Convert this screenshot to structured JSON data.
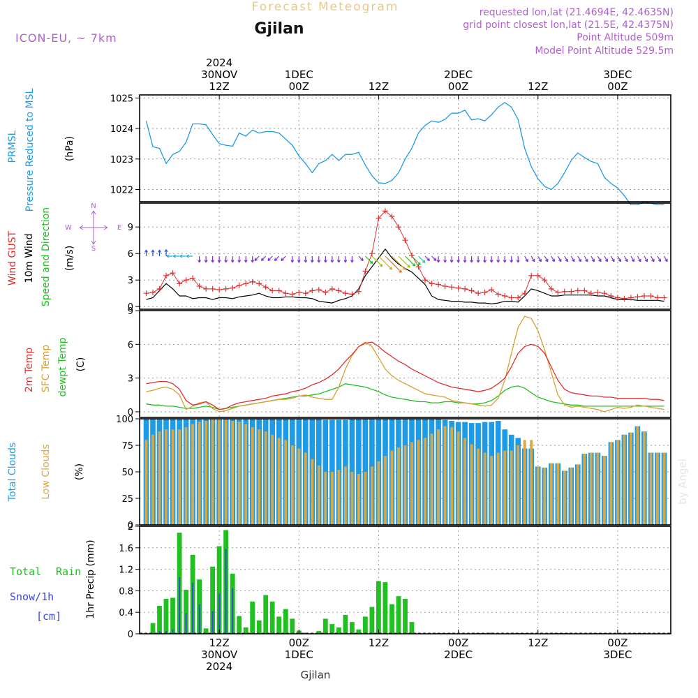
{
  "header": {
    "app_title": "Forecast Meteogram",
    "location": "Gjilan",
    "model": "ICON-EU, ~ 7km",
    "requested": "requested lon,lat (21.4694E, 42.4635N)",
    "grid_point": "grid point closest lon,lat (21.5E, 42.4375N)",
    "point_altitude": "Point Altitude 509m",
    "model_altitude": "Model Point Altitude 529.5m",
    "footer_location": "Gjilan",
    "watermark": "by Angel"
  },
  "colors": {
    "prmsl": "#1e9be6",
    "gust": "#e03030",
    "wind10": "#000000",
    "wind_dir": "#20c020",
    "t2m": "#e03030",
    "sfc": "#d8a030",
    "dewpt": "#20c020",
    "total_clouds": "#1e9be6",
    "low_clouds": "#d8a848",
    "rain": "#20c020",
    "snow": "#3848e0",
    "header_purple": "#b060d0",
    "title_gold": "#e8c890"
  },
  "time_axis": {
    "top_labels": [
      {
        "t": 18,
        "lines": [
          "2024",
          "30NOV",
          "12Z"
        ]
      },
      {
        "t": 30,
        "lines": [
          "1DEC",
          "00Z"
        ]
      },
      {
        "t": 42,
        "lines": [
          "12Z"
        ]
      },
      {
        "t": 54,
        "lines": [
          "2DEC",
          "00Z"
        ]
      },
      {
        "t": 66,
        "lines": [
          "12Z"
        ]
      },
      {
        "t": 78,
        "lines": [
          "3DEC",
          "00Z"
        ]
      }
    ],
    "bottom_labels": [
      {
        "t": 18,
        "lines": [
          "12Z",
          "30NOV",
          "2024"
        ]
      },
      {
        "t": 30,
        "lines": [
          "00Z",
          "1DEC"
        ]
      },
      {
        "t": 42,
        "lines": [
          "12Z"
        ]
      },
      {
        "t": 54,
        "lines": [
          "00Z",
          "2DEC"
        ]
      },
      {
        "t": 66,
        "lines": [
          "12Z"
        ]
      },
      {
        "t": 78,
        "lines": [
          "00Z",
          "3DEC"
        ]
      }
    ]
  },
  "chart_data": [
    {
      "type": "line",
      "name": "pressure",
      "labels": [
        "PRMSL",
        "Pressure Reduced to MSL",
        "(hPa)"
      ],
      "ylim": [
        1021.6,
        1025.1
      ],
      "yticks": [
        1022,
        1023,
        1024,
        1025
      ],
      "x": [
        7,
        8,
        9,
        10,
        11,
        12,
        13,
        14,
        15,
        16,
        17,
        18,
        19,
        20,
        21,
        22,
        23,
        24,
        25,
        26,
        27,
        28,
        29,
        30,
        31,
        32,
        33,
        34,
        35,
        36,
        37,
        38,
        39,
        40,
        41,
        42,
        43,
        44,
        45,
        46,
        47,
        48,
        49,
        50,
        51,
        52,
        53,
        54,
        55,
        56,
        57,
        58,
        59,
        60,
        61,
        62,
        63,
        64,
        65,
        66,
        67,
        68,
        69,
        70,
        71,
        72,
        73,
        74,
        75,
        76,
        77,
        78,
        79,
        80,
        81,
        82,
        83,
        84,
        85
      ],
      "values": [
        1024.25,
        1023.4,
        1023.35,
        1022.85,
        1023.15,
        1023.25,
        1023.55,
        1024.15,
        1024.15,
        1024.12,
        1023.8,
        1023.5,
        1023.45,
        1023.42,
        1023.85,
        1023.75,
        1023.95,
        1023.85,
        1023.9,
        1023.9,
        1023.85,
        1023.65,
        1023.45,
        1023.1,
        1022.85,
        1022.55,
        1022.85,
        1022.95,
        1023.15,
        1022.95,
        1023.15,
        1023.15,
        1023.22,
        1022.8,
        1022.45,
        1022.22,
        1022.2,
        1022.3,
        1022.55,
        1023.0,
        1023.35,
        1023.85,
        1024.1,
        1024.25,
        1024.2,
        1024.3,
        1024.5,
        1024.5,
        1024.6,
        1024.28,
        1024.32,
        1024.25,
        1024.45,
        1024.7,
        1024.85,
        1024.7,
        1024.3,
        1023.35,
        1022.75,
        1022.35,
        1022.1,
        1022.0,
        1022.2,
        1022.55,
        1022.95,
        1023.2,
        1023.05,
        1022.92,
        1022.85,
        1022.4,
        1022.2,
        1022.05,
        1021.8,
        1021.5,
        1021.5,
        1021.6,
        1021.55,
        1021.5,
        1021.5
      ]
    },
    {
      "type": "line",
      "name": "wind",
      "labels": [
        "Wind GUST",
        "10m Wind",
        "Speed and Direction",
        "(m/s)"
      ],
      "compass": [
        "N",
        "W",
        "E",
        "S"
      ],
      "ylim": [
        -0.3,
        11.7
      ],
      "yticks": [
        0,
        3,
        6,
        9
      ],
      "x": [
        7,
        8,
        9,
        10,
        11,
        12,
        13,
        14,
        15,
        16,
        17,
        18,
        19,
        20,
        21,
        22,
        23,
        24,
        25,
        26,
        27,
        28,
        29,
        30,
        31,
        32,
        33,
        34,
        35,
        36,
        37,
        38,
        39,
        40,
        41,
        42,
        43,
        44,
        45,
        46,
        47,
        48,
        49,
        50,
        51,
        52,
        53,
        54,
        55,
        56,
        57,
        58,
        59,
        60,
        61,
        62,
        63,
        64,
        65,
        66,
        67,
        68,
        69,
        70,
        71,
        72,
        73,
        74,
        75,
        76,
        77,
        78,
        79,
        80,
        81,
        82,
        83,
        84,
        85
      ],
      "gust": [
        1.5,
        1.6,
        2.0,
        3.5,
        3.8,
        2.6,
        3.0,
        3.2,
        2.3,
        2.0,
        2.0,
        1.9,
        2.0,
        2.1,
        2.4,
        2.6,
        2.8,
        2.6,
        2.2,
        1.8,
        1.8,
        1.5,
        1.4,
        1.6,
        1.5,
        1.8,
        1.9,
        1.6,
        2.0,
        1.8,
        1.5,
        1.4,
        1.7,
        4.0,
        6.0,
        10.0,
        10.8,
        10.2,
        9.0,
        7.5,
        5.8,
        4.5,
        3.0,
        2.6,
        2.5,
        2.3,
        2.2,
        2.1,
        2.0,
        1.8,
        1.5,
        1.6,
        1.9,
        1.4,
        1.2,
        1.0,
        1.0,
        1.5,
        3.5,
        3.5,
        3.0,
        2.0,
        1.6,
        1.7,
        1.7,
        1.8,
        1.8,
        1.5,
        1.6,
        1.5,
        1.2,
        1.0,
        0.9,
        1.0,
        1.1,
        1.2,
        1.2,
        1.0,
        1.0
      ],
      "wind10": [
        0.8,
        1.0,
        1.8,
        2.6,
        2.0,
        1.2,
        1.2,
        0.9,
        1.0,
        1.0,
        0.8,
        1.0,
        1.0,
        0.9,
        1.1,
        1.2,
        1.3,
        1.5,
        1.2,
        1.0,
        1.0,
        1.1,
        1.1,
        1.0,
        1.0,
        0.9,
        0.6,
        0.5,
        0.4,
        0.7,
        0.9,
        1.2,
        2.0,
        3.5,
        4.5,
        5.5,
        6.5,
        5.5,
        4.8,
        4.3,
        3.9,
        3.2,
        2.5,
        1.2,
        0.8,
        0.7,
        0.6,
        0.6,
        0.5,
        0.5,
        0.4,
        0.4,
        0.3,
        0.4,
        0.6,
        0.6,
        0.5,
        1.2,
        2.0,
        1.8,
        1.5,
        1.2,
        1.2,
        1.3,
        1.3,
        1.3,
        1.3,
        1.3,
        1.2,
        1.2,
        1.0,
        0.8,
        0.8,
        0.8,
        0.7,
        0.7,
        0.7,
        0.7,
        0.6
      ],
      "dir_deg": [
        90,
        90,
        90,
        90,
        180,
        180,
        180,
        180,
        270,
        270,
        270,
        270,
        270,
        270,
        270,
        270,
        270,
        225,
        225,
        225,
        225,
        225,
        270,
        270,
        270,
        270,
        270,
        270,
        270,
        270,
        270,
        270,
        315,
        315,
        315,
        315,
        315,
        315,
        315,
        315,
        315,
        315,
        315,
        315,
        270,
        270,
        270,
        270,
        270,
        270,
        270,
        270,
        270,
        270,
        270,
        270,
        270,
        300,
        300,
        300,
        300,
        300,
        300,
        300,
        300,
        300,
        300,
        300,
        300,
        300,
        300,
        300,
        300,
        300,
        300,
        300,
        300,
        300,
        300
      ]
    },
    {
      "type": "line",
      "name": "temperature",
      "labels": [
        "2m Temp",
        "SFC Temp",
        "dewpt Temp",
        "(C)"
      ],
      "ylim": [
        -0.5,
        9.0
      ],
      "yticks": [
        0,
        3,
        6,
        9
      ],
      "x": [
        7,
        8,
        9,
        10,
        11,
        12,
        13,
        14,
        15,
        16,
        17,
        18,
        19,
        20,
        21,
        22,
        23,
        24,
        25,
        26,
        27,
        28,
        29,
        30,
        31,
        32,
        33,
        34,
        35,
        36,
        37,
        38,
        39,
        40,
        41,
        42,
        43,
        44,
        45,
        46,
        47,
        48,
        49,
        50,
        51,
        52,
        53,
        54,
        55,
        56,
        57,
        58,
        59,
        60,
        61,
        62,
        63,
        64,
        65,
        66,
        67,
        68,
        69,
        70,
        71,
        72,
        73,
        74,
        75,
        76,
        77,
        78,
        79,
        80,
        81,
        82,
        83,
        84,
        85
      ],
      "t2m": [
        2.5,
        2.6,
        2.7,
        2.7,
        2.5,
        2.0,
        1.0,
        0.6,
        0.7,
        0.9,
        0.6,
        0.2,
        0.3,
        0.6,
        0.8,
        0.9,
        1.0,
        1.1,
        1.2,
        1.4,
        1.5,
        1.6,
        1.8,
        1.9,
        2.1,
        2.4,
        2.6,
        2.9,
        3.3,
        3.8,
        4.5,
        5.1,
        5.8,
        6.1,
        6.2,
        5.8,
        5.3,
        4.9,
        4.5,
        4.2,
        3.8,
        3.5,
        3.2,
        2.9,
        2.6,
        2.4,
        2.2,
        2.1,
        2.0,
        1.9,
        1.8,
        1.9,
        2.1,
        2.5,
        3.0,
        4.0,
        5.2,
        5.8,
        6.0,
        5.8,
        5.2,
        4.0,
        2.8,
        2.0,
        1.7,
        1.6,
        1.5,
        1.4,
        1.4,
        1.3,
        1.3,
        1.2,
        1.2,
        1.2,
        1.2,
        1.2,
        1.1,
        1.1,
        1.0
      ],
      "sfc": [
        1.8,
        1.9,
        2.1,
        2.2,
        2.0,
        1.5,
        0.2,
        0.5,
        0.8,
        0.9,
        0.3,
        0.0,
        0.1,
        0.3,
        0.5,
        0.6,
        0.7,
        0.8,
        0.9,
        1.0,
        1.1,
        1.1,
        1.2,
        1.4,
        1.5,
        1.3,
        1.2,
        1.1,
        1.1,
        2.2,
        3.8,
        5.0,
        5.8,
        6.2,
        5.8,
        4.8,
        3.8,
        3.2,
        2.8,
        2.5,
        2.2,
        1.9,
        1.6,
        1.5,
        1.4,
        1.3,
        1.0,
        0.9,
        0.8,
        0.7,
        0.6,
        0.5,
        0.6,
        1.2,
        2.8,
        5.2,
        7.5,
        8.5,
        8.3,
        7.2,
        5.5,
        3.5,
        1.5,
        0.6,
        0.4,
        0.5,
        0.4,
        0.3,
        0.2,
        0.0,
        0.2,
        0.4,
        0.3,
        0.4,
        0.6,
        0.5,
        0.4,
        0.3,
        0.2
      ],
      "dewpt": [
        0.7,
        0.6,
        0.6,
        0.5,
        0.5,
        0.4,
        0.3,
        0.3,
        0.4,
        0.5,
        0.4,
        0.2,
        0.3,
        0.4,
        0.5,
        0.6,
        0.7,
        0.8,
        0.9,
        1.0,
        1.1,
        1.2,
        1.3,
        1.4,
        1.4,
        1.5,
        1.6,
        1.8,
        2.0,
        2.2,
        2.5,
        2.4,
        2.3,
        2.2,
        2.0,
        1.8,
        1.5,
        1.3,
        1.2,
        1.1,
        1.0,
        0.9,
        0.9,
        0.8,
        0.8,
        0.9,
        0.9,
        0.8,
        0.8,
        0.7,
        0.7,
        0.8,
        1.0,
        1.4,
        1.9,
        2.2,
        2.3,
        2.1,
        1.7,
        1.3,
        1.1,
        0.9,
        0.8,
        0.7,
        0.6,
        0.6,
        0.5,
        0.5,
        0.5,
        0.5,
        0.5,
        0.5,
        0.5,
        0.5,
        0.5,
        0.5,
        0.5,
        0.5,
        0.5
      ]
    },
    {
      "type": "bar",
      "name": "clouds",
      "labels": [
        "Total Clouds",
        "Low Clouds",
        "(%)"
      ],
      "ylim": [
        0,
        100
      ],
      "yticks": [
        0,
        25,
        50,
        75,
        100
      ],
      "x": [
        7,
        8,
        9,
        10,
        11,
        12,
        13,
        14,
        15,
        16,
        17,
        18,
        19,
        20,
        21,
        22,
        23,
        24,
        25,
        26,
        27,
        28,
        29,
        30,
        31,
        32,
        33,
        34,
        35,
        36,
        37,
        38,
        39,
        40,
        41,
        42,
        43,
        44,
        45,
        46,
        47,
        48,
        49,
        50,
        51,
        52,
        53,
        54,
        55,
        56,
        57,
        58,
        59,
        60,
        61,
        62,
        63,
        64,
        65,
        66,
        67,
        68,
        69,
        70,
        71,
        72,
        73,
        74,
        75,
        76,
        77,
        78,
        79,
        80,
        81,
        82,
        83,
        84,
        85
      ],
      "total": [
        100,
        100,
        100,
        100,
        100,
        100,
        100,
        100,
        100,
        100,
        100,
        100,
        100,
        100,
        100,
        100,
        100,
        100,
        100,
        100,
        100,
        100,
        100,
        100,
        100,
        100,
        100,
        99,
        99,
        99,
        99,
        100,
        100,
        100,
        100,
        100,
        100,
        100,
        100,
        100,
        100,
        100,
        100,
        100,
        100,
        99,
        98,
        97,
        97,
        96,
        96,
        97,
        97,
        98,
        90,
        85,
        82,
        72,
        72,
        55,
        54,
        58,
        58,
        51,
        54,
        57,
        67,
        68,
        68,
        65,
        78,
        80,
        85,
        87,
        93,
        88,
        68,
        68,
        68
      ],
      "low": [
        80,
        85,
        88,
        90,
        90,
        90,
        92,
        95,
        97,
        98,
        100,
        100,
        99,
        98,
        97,
        95,
        92,
        90,
        88,
        85,
        82,
        80,
        75,
        72,
        68,
        62,
        56,
        50,
        50,
        52,
        55,
        50,
        48,
        50,
        55,
        60,
        65,
        70,
        73,
        75,
        78,
        80,
        82,
        86,
        90,
        93,
        92,
        88,
        82,
        76,
        72,
        68,
        65,
        68,
        70,
        70,
        75,
        80,
        80,
        55,
        54,
        58,
        58,
        51,
        54,
        57,
        67,
        68,
        68,
        65,
        78,
        80,
        85,
        87,
        93,
        88,
        68,
        68,
        68
      ]
    },
    {
      "type": "bar",
      "name": "precipitation",
      "labels": [
        "Total",
        "Rain",
        "Snow/1h",
        "[cm]",
        "1hr Precip (mm)"
      ],
      "ylim": [
        0,
        2
      ],
      "yticks": [
        0,
        0.4,
        0.8,
        1.2,
        1.6,
        2
      ],
      "x": [
        7,
        8,
        9,
        10,
        11,
        12,
        13,
        14,
        15,
        16,
        17,
        18,
        19,
        20,
        21,
        22,
        23,
        24,
        25,
        26,
        27,
        28,
        29,
        30,
        31,
        32,
        33,
        34,
        35,
        36,
        37,
        38,
        39,
        40,
        41,
        42,
        43,
        44,
        45,
        46,
        47,
        48,
        49,
        50,
        51,
        52,
        53,
        54,
        55,
        56,
        57,
        58,
        59,
        60,
        61,
        62,
        63,
        64,
        65,
        66,
        67,
        68,
        69,
        70,
        71,
        72,
        73,
        74,
        75,
        76,
        77,
        78,
        79,
        80,
        81,
        82,
        83,
        84,
        85
      ],
      "rain": [
        0,
        0.2,
        0.52,
        0.65,
        0.67,
        1.88,
        0.82,
        1.47,
        1.01,
        0.1,
        1.25,
        1.63,
        1.93,
        1.12,
        0.33,
        0.12,
        0.6,
        0.25,
        0.72,
        0.6,
        0.32,
        0.46,
        0.28,
        0.06,
        0.02,
        0,
        0.05,
        0.28,
        0.18,
        0.12,
        0.35,
        0.22,
        0.08,
        0.32,
        0.5,
        0.98,
        0.96,
        0.55,
        0.7,
        0.65,
        0.22,
        0,
        0,
        0,
        0,
        0,
        0,
        0,
        0,
        0,
        0,
        0,
        0.02,
        0,
        0,
        0,
        0,
        0,
        0,
        0,
        0,
        0,
        0,
        0,
        0,
        0,
        0,
        0,
        0,
        0,
        0,
        0,
        0,
        0,
        0,
        0,
        0,
        0,
        0
      ],
      "snow": [
        0,
        0,
        0.05,
        0.05,
        0.08,
        1.05,
        0.38,
        0.95,
        0.55,
        0.02,
        0.42,
        0.75,
        1.58,
        0.85,
        0,
        0,
        0,
        0,
        0,
        0,
        0,
        0,
        0,
        0,
        0,
        0,
        0,
        0,
        0,
        0,
        0,
        0,
        0,
        0,
        0,
        0,
        0,
        0,
        0,
        0,
        0,
        0,
        0,
        0,
        0,
        0,
        0,
        0,
        0,
        0,
        0,
        0,
        0,
        0,
        0,
        0,
        0,
        0,
        0,
        0,
        0,
        0,
        0,
        0,
        0,
        0,
        0,
        0,
        0,
        0,
        0,
        0,
        0,
        0,
        0,
        0,
        0,
        0,
        0
      ]
    }
  ]
}
